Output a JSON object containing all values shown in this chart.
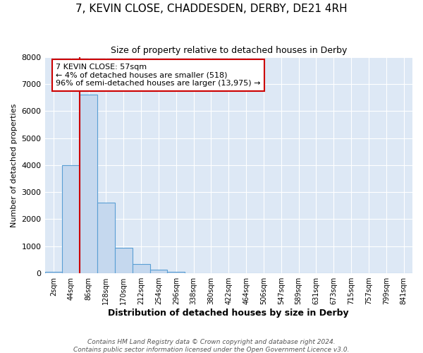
{
  "title": "7, KEVIN CLOSE, CHADDESDEN, DERBY, DE21 4RH",
  "subtitle": "Size of property relative to detached houses in Derby",
  "xlabel": "Distribution of detached houses by size in Derby",
  "ylabel": "Number of detached properties",
  "footer1": "Contains HM Land Registry data © Crown copyright and database right 2024.",
  "footer2": "Contains public sector information licensed under the Open Government Licence v3.0.",
  "bin_labels": [
    "2sqm",
    "44sqm",
    "86sqm",
    "128sqm",
    "170sqm",
    "212sqm",
    "254sqm",
    "296sqm",
    "338sqm",
    "380sqm",
    "422sqm",
    "464sqm",
    "506sqm",
    "547sqm",
    "589sqm",
    "631sqm",
    "673sqm",
    "715sqm",
    "757sqm",
    "799sqm",
    "841sqm"
  ],
  "bar_values": [
    50,
    4000,
    6600,
    2600,
    950,
    330,
    130,
    50,
    10,
    0,
    0,
    0,
    0,
    0,
    0,
    0,
    0,
    0,
    0,
    0,
    0
  ],
  "bar_color": "#c5d8ee",
  "bar_edge_color": "#5a9fd4",
  "ylim": [
    0,
    8000
  ],
  "yticks": [
    0,
    1000,
    2000,
    3000,
    4000,
    5000,
    6000,
    7000,
    8000
  ],
  "property_line_x": 1.5,
  "property_line_color": "#cc0000",
  "annotation_text": "7 KEVIN CLOSE: 57sqm\n← 4% of detached houses are smaller (518)\n96% of semi-detached houses are larger (13,975) →",
  "annotation_box_color": "#cc0000",
  "plot_bg_color": "#dde8f5",
  "fig_bg_color": "#ffffff",
  "grid_color": "#ffffff",
  "title_fontsize": 11,
  "subtitle_fontsize": 9,
  "ylabel_fontsize": 8,
  "xlabel_fontsize": 9,
  "tick_fontsize": 7,
  "annotation_fontsize": 8,
  "footer_fontsize": 6.5
}
